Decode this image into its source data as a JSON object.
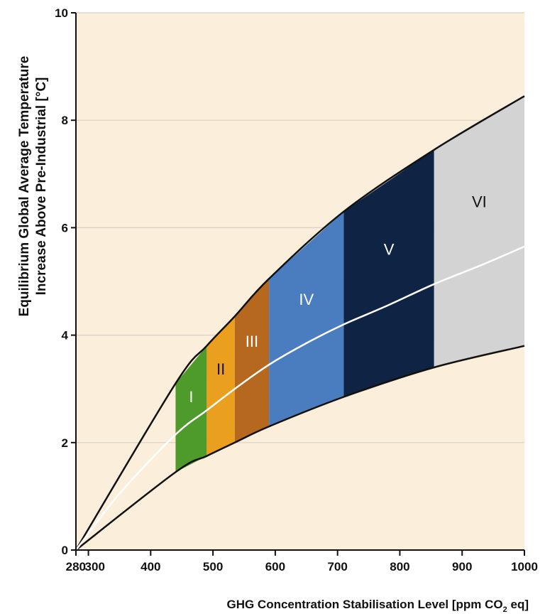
{
  "chart_data": {
    "type": "area",
    "xlabel_main": "GHG Concentration Stabilisation Level [ppm CO",
    "xlabel_sub": "2",
    "xlabel_end": " eq]",
    "ylabel_line1": "Equilibrium Global Average Temperature",
    "ylabel_line2": "Increase Above Pre-Industrial [°C]",
    "xlim": [
      280,
      1000
    ],
    "ylim": [
      0,
      10
    ],
    "xticks": [
      280,
      300,
      400,
      500,
      600,
      700,
      800,
      900,
      1000
    ],
    "yticks": [
      0,
      2,
      4,
      6,
      8,
      10
    ],
    "grid": true,
    "upper_bound": {
      "x": [
        280,
        440,
        490,
        535,
        590,
        710,
        855,
        1000
      ],
      "y": [
        0,
        3.1,
        3.8,
        4.35,
        5.05,
        6.3,
        7.45,
        8.45
      ]
    },
    "lower_bound": {
      "x": [
        280,
        440,
        490,
        535,
        590,
        710,
        855,
        1000
      ],
      "y": [
        0,
        1.45,
        1.75,
        2.0,
        2.3,
        2.85,
        3.4,
        3.8
      ]
    },
    "best_estimate": {
      "x": [
        280,
        350,
        440,
        490,
        535,
        590,
        650,
        710,
        780,
        855,
        930,
        1000
      ],
      "y": [
        0,
        1.05,
        2.15,
        2.6,
        3.0,
        3.45,
        3.85,
        4.2,
        4.55,
        4.95,
        5.3,
        5.65
      ]
    },
    "categories": [
      {
        "label": "I",
        "x_range": [
          440,
          490
        ],
        "color": "#4e9a2a",
        "text_color": "#ffffff"
      },
      {
        "label": "II",
        "x_range": [
          490,
          535
        ],
        "color": "#eb9f1e",
        "text_color": "#111111"
      },
      {
        "label": "III",
        "x_range": [
          535,
          590
        ],
        "color": "#b5681e",
        "text_color": "#ffffff"
      },
      {
        "label": "IV",
        "x_range": [
          590,
          710
        ],
        "color": "#4a7dbf",
        "text_color": "#ffffff"
      },
      {
        "label": "V",
        "x_range": [
          710,
          855
        ],
        "color": "#0f2445",
        "text_color": "#ffffff"
      },
      {
        "label": "VI",
        "x_range": [
          855,
          1000
        ],
        "color": "#d3d3d3",
        "text_color": "#111111"
      }
    ],
    "colors": {
      "background": "#fbeedb",
      "gridline": "#d8d2c6",
      "bound_line": "#111111",
      "best_estimate_line": "#ffffff"
    }
  }
}
